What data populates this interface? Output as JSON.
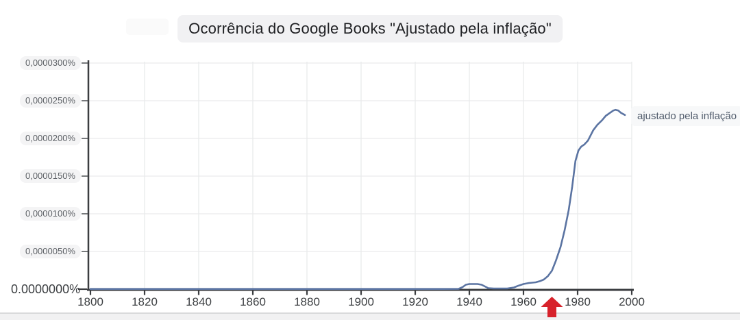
{
  "chart_data": {
    "type": "line",
    "title": "Ocorrência do Google Books \"Ajustado pela inflação\"",
    "xlabel": "",
    "ylabel": "",
    "xlim": [
      1800,
      2000
    ],
    "ylim_percent": [
      0,
      3e-05
    ],
    "grid": true,
    "legend_position": "right-of-line-end",
    "x_ticks": [
      1800,
      1820,
      1840,
      1860,
      1880,
      1900,
      1920,
      1940,
      1960,
      1980,
      2000
    ],
    "y_ticks": [
      {
        "label": "0,0000050%",
        "value_e7": 50
      },
      {
        "label": "0,0000100%",
        "value_e7": 100
      },
      {
        "label": "0,0000150%",
        "value_e7": 150
      },
      {
        "label": "0,0000200%",
        "value_e7": 200
      },
      {
        "label": "0,0000250%",
        "value_e7": 250
      },
      {
        "label": "0,0000300%",
        "value_e7": 300
      }
    ],
    "y_zero_label": "0.0000000%",
    "value_unit": "1e-7 percent",
    "series": [
      {
        "name": "ajustado pela inflação",
        "color": "#5b74a2",
        "points": [
          [
            1800,
            0.3
          ],
          [
            1810,
            0.3
          ],
          [
            1820,
            0.3
          ],
          [
            1830,
            0.3
          ],
          [
            1840,
            0.3
          ],
          [
            1850,
            0.3
          ],
          [
            1860,
            0.3
          ],
          [
            1870,
            0.3
          ],
          [
            1880,
            0.3
          ],
          [
            1890,
            0.3
          ],
          [
            1900,
            0.3
          ],
          [
            1910,
            0.3
          ],
          [
            1920,
            0.3
          ],
          [
            1930,
            0.3
          ],
          [
            1936,
            0.4
          ],
          [
            1937.5,
            2.7
          ],
          [
            1938.7,
            5.9
          ],
          [
            1940,
            6.8
          ],
          [
            1943,
            6.8
          ],
          [
            1944.5,
            5.9
          ],
          [
            1946,
            3.2
          ],
          [
            1947,
            1.4
          ],
          [
            1949,
            0.9
          ],
          [
            1954,
            0.9
          ],
          [
            1956.5,
            2.3
          ],
          [
            1958,
            4.5
          ],
          [
            1960,
            6.8
          ],
          [
            1962,
            8.2
          ],
          [
            1964.5,
            9.1
          ],
          [
            1966,
            10.5
          ],
          [
            1967.5,
            12.7
          ],
          [
            1969,
            17.3
          ],
          [
            1970.5,
            24.5
          ],
          [
            1972,
            38
          ],
          [
            1973.7,
            56
          ],
          [
            1975.2,
            78
          ],
          [
            1976.7,
            105
          ],
          [
            1978,
            136
          ],
          [
            1979.2,
            170
          ],
          [
            1980.3,
            184
          ],
          [
            1981.3,
            189
          ],
          [
            1982.5,
            192
          ],
          [
            1983.8,
            197
          ],
          [
            1985.8,
            211
          ],
          [
            1987.3,
            218
          ],
          [
            1989,
            224
          ],
          [
            1990.4,
            230
          ],
          [
            1992,
            234
          ],
          [
            1993.2,
            237
          ],
          [
            1994,
            238
          ],
          [
            1995,
            237
          ],
          [
            1996,
            234
          ],
          [
            1997,
            232
          ],
          [
            1997.5,
            231
          ]
        ]
      }
    ],
    "annotations": [
      {
        "type": "arrow-up",
        "x_year": 1970.5,
        "color": "#d7222b"
      }
    ]
  },
  "colors": {
    "background": "#ffffff",
    "grid": "#e9eaec",
    "axis": "#3b3d40",
    "tick": "#55585c",
    "line": "#5b74a2",
    "arrow": "#d7222b",
    "title_pill_bg": "#f1f1f3",
    "label_pill_bg": "#f4f4f5",
    "series_label_bg": "#f7f8f9",
    "bottom_bar": "#f1f1f2",
    "divider": "#d9dadb"
  }
}
